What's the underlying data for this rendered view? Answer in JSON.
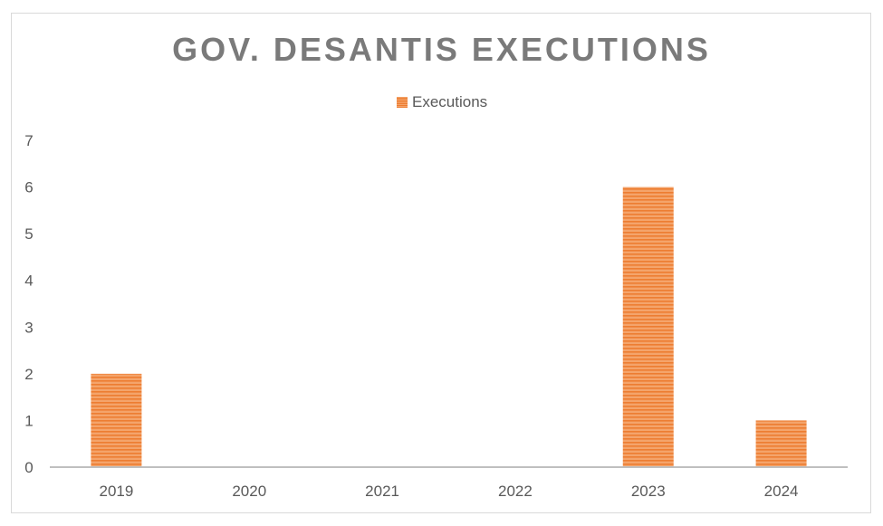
{
  "chart_data": {
    "type": "bar",
    "title": "GOV. DESANTIS EXECUTIONS",
    "categories": [
      "2019",
      "2020",
      "2021",
      "2022",
      "2023",
      "2024"
    ],
    "series": [
      {
        "name": "Executions",
        "values": [
          2,
          0,
          0,
          0,
          6,
          1
        ]
      }
    ],
    "y_ticks": [
      "0",
      "1",
      "2",
      "3",
      "4",
      "5",
      "6",
      "7"
    ],
    "ylim": [
      0,
      7
    ],
    "legend_position": "top",
    "grid": false,
    "colors": {
      "bar": "#ed7d31",
      "bar_stripe": "#f4a46b",
      "axis": "#bfbfbf",
      "title": "#7a7a7a"
    }
  }
}
